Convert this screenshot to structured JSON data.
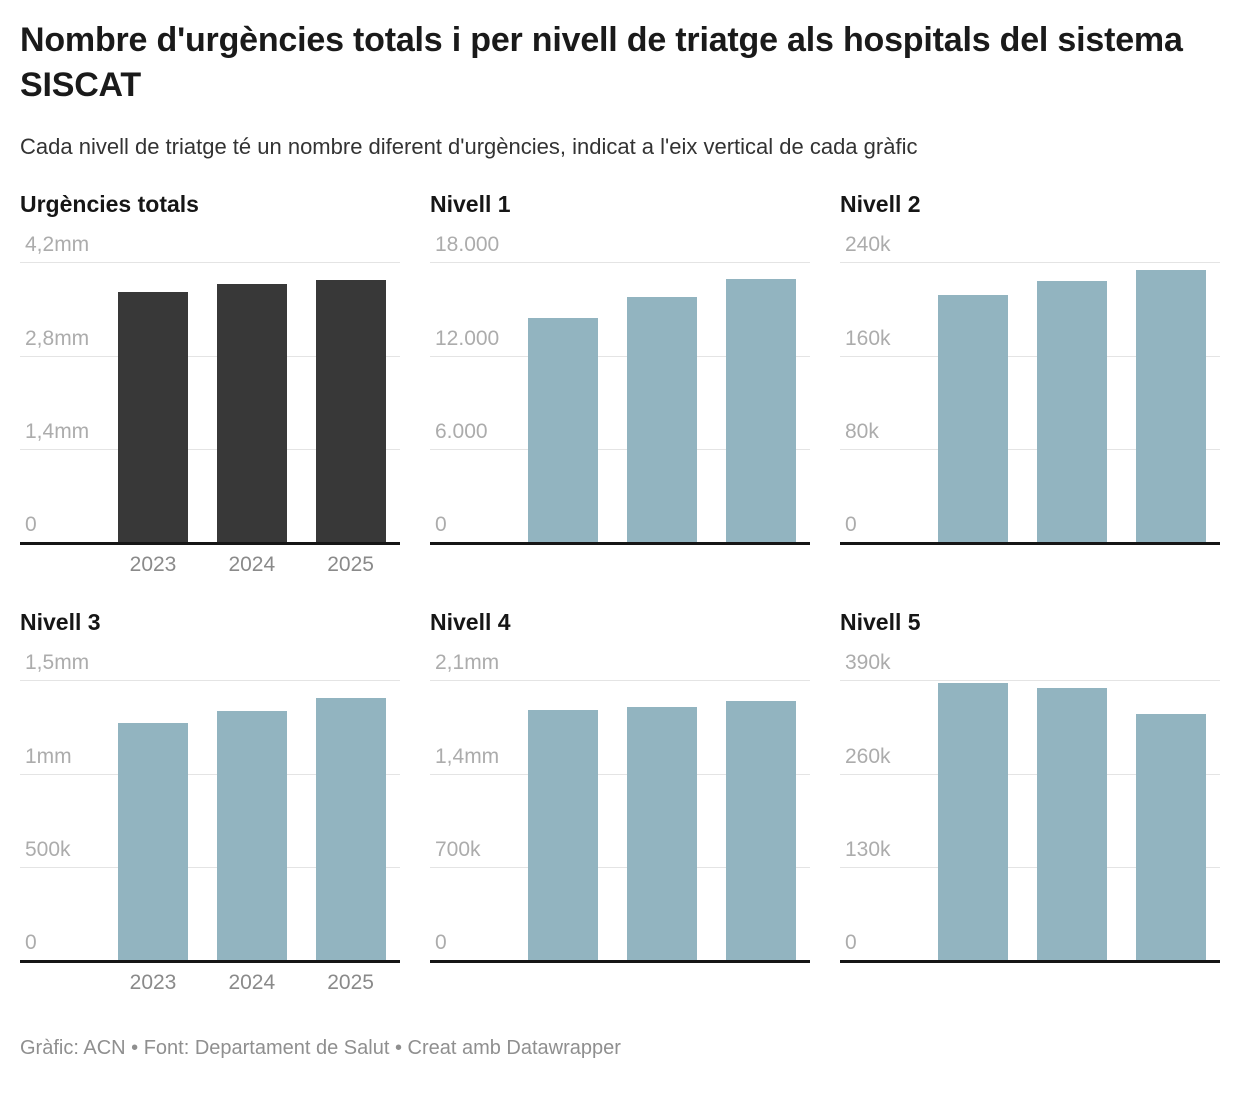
{
  "header": {
    "title": "Nombre d'urgències totals i per nivell de triatge als hospitals del sistema SISCAT",
    "subtitle": "Cada nivell de triatge té un nombre diferent d'urgències, indicat a l'eix vertical de cada gràfic"
  },
  "footer": {
    "text": "Gràfic: ACN • Font: Departament de Salut • Creat amb Datawrapper"
  },
  "colors": {
    "totals_bar": "#383838",
    "level_bar": "#92b4c0"
  },
  "chart_data": [
    {
      "type": "bar",
      "title": "Urgències totals",
      "categories": [
        "2023",
        "2024",
        "2025"
      ],
      "values": [
        3760000,
        3880000,
        3940000
      ],
      "ylim": [
        0,
        4200000
      ],
      "yticks": [
        "4,2mm",
        "2,8mm",
        "1,4mm",
        "0"
      ],
      "show_x_labels": true,
      "bar_color": "#383838",
      "grid": true,
      "legend": "none"
    },
    {
      "type": "bar",
      "title": "Nivell 1",
      "categories": [
        "2023",
        "2024",
        "2025"
      ],
      "values": [
        14400,
        15800,
        16950
      ],
      "ylim": [
        0,
        18000
      ],
      "yticks": [
        "18.000",
        "12.000",
        "6.000",
        "0"
      ],
      "show_x_labels": false,
      "bar_color": "#92b4c0",
      "grid": true,
      "legend": "none"
    },
    {
      "type": "bar",
      "title": "Nivell 2",
      "categories": [
        "2023",
        "2024",
        "2025"
      ],
      "values": [
        212000,
        224000,
        233500
      ],
      "ylim": [
        0,
        240000
      ],
      "yticks": [
        "240k",
        "160k",
        "80k",
        "0"
      ],
      "show_x_labels": false,
      "bar_color": "#92b4c0",
      "grid": true,
      "legend": "none"
    },
    {
      "type": "bar",
      "title": "Nivell 3",
      "categories": [
        "2023",
        "2024",
        "2025"
      ],
      "values": [
        1270000,
        1335000,
        1405000
      ],
      "ylim": [
        0,
        1500000
      ],
      "yticks": [
        "1,5mm",
        "1mm",
        "500k",
        "0"
      ],
      "show_x_labels": true,
      "bar_color": "#92b4c0",
      "grid": true,
      "legend": "none"
    },
    {
      "type": "bar",
      "title": "Nivell 4",
      "categories": [
        "2023",
        "2024",
        "2025"
      ],
      "values": [
        1880000,
        1900000,
        1945000
      ],
      "ylim": [
        0,
        2100000
      ],
      "yticks": [
        "2,1mm",
        "1,4mm",
        "700k",
        "0"
      ],
      "show_x_labels": false,
      "bar_color": "#92b4c0",
      "grid": true,
      "legend": "none"
    },
    {
      "type": "bar",
      "title": "Nivell 5",
      "categories": [
        "2023",
        "2024",
        "2025"
      ],
      "values": [
        386000,
        379000,
        343000
      ],
      "ylim": [
        0,
        390000
      ],
      "yticks": [
        "390k",
        "260k",
        "130k",
        "0"
      ],
      "show_x_labels": false,
      "bar_color": "#92b4c0",
      "grid": true,
      "legend": "none"
    }
  ]
}
